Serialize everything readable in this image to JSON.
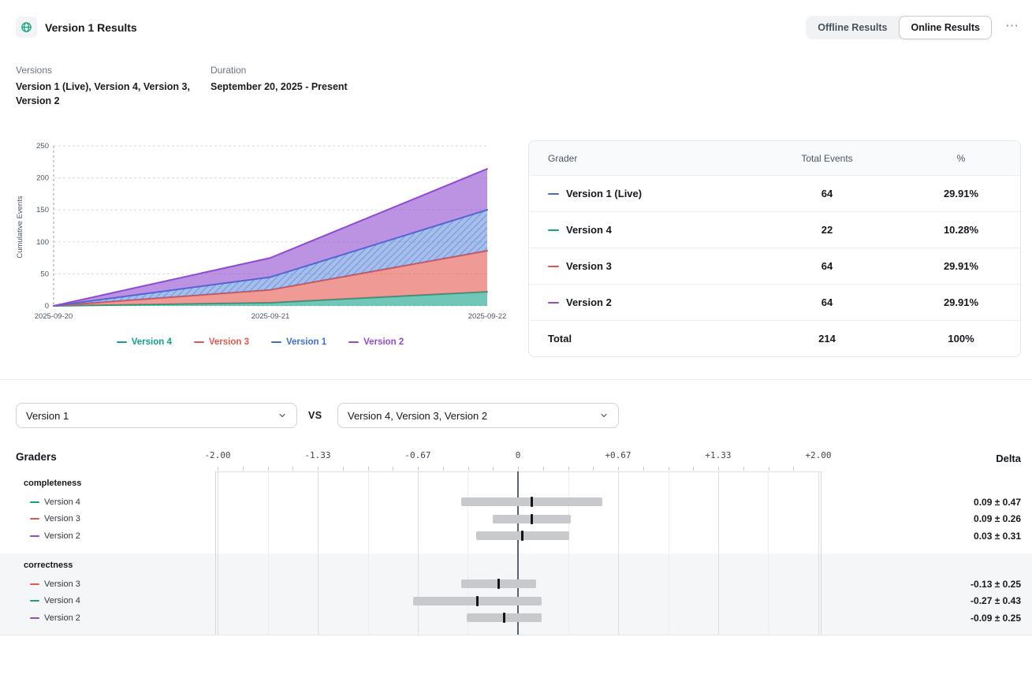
{
  "header": {
    "title": "Version 1 Results",
    "offline_label": "Offline Results",
    "online_label": "Online Results",
    "overflow_menu": "⋯"
  },
  "meta": {
    "versions_label": "Versions",
    "versions_value": "Version 1 (Live), Version 4, Version 3, Version 2",
    "duration_label": "Duration",
    "duration_value": "September 20, 2025 - Present"
  },
  "colors": {
    "version1": "#3d6fd3",
    "version2": "#8f4bd1",
    "version3": "#e4574c",
    "version4": "#11a287",
    "accent_teal": "#10a37f",
    "error_bar": "#c7c9cc",
    "mean_marker": "#141518"
  },
  "chart_data": [
    {
      "type": "area",
      "title": "Cumulative events by version",
      "stacked": true,
      "x": [
        "2025-09-20",
        "2025-09-21",
        "2025-09-22"
      ],
      "series": [
        {
          "name": "Version 4",
          "color_key": "version4",
          "values": [
            0,
            5,
            22
          ]
        },
        {
          "name": "Version 3",
          "color_key": "version3",
          "values": [
            0,
            20,
            64
          ]
        },
        {
          "name": "Version 1",
          "color_key": "version1",
          "values": [
            0,
            20,
            64
          ],
          "hatched": true
        },
        {
          "name": "Version 2",
          "color_key": "version2",
          "values": [
            0,
            30,
            64
          ]
        }
      ],
      "ylabel": "Cumulative Events",
      "ylim": [
        0,
        250
      ],
      "yticks": [
        0,
        50,
        100,
        150,
        200,
        250
      ],
      "grid": "dashed-horizontal",
      "legend_position": "bottom"
    },
    {
      "type": "interval",
      "title": "Grader score delta vs baseline",
      "xlim": [
        -2,
        2
      ],
      "ticks": [
        {
          "label": "-2.00",
          "value": -2
        },
        {
          "label": "-1.33",
          "value": -1.3333
        },
        {
          "label": "-0.67",
          "value": -0.6667
        },
        {
          "label": "0",
          "value": 0
        },
        {
          "label": "+0.67",
          "value": 0.6667
        },
        {
          "label": "+1.33",
          "value": 1.3333
        },
        {
          "label": "+2.00",
          "value": 2
        }
      ],
      "groups": [
        {
          "name": "completeness",
          "rows": [
            {
              "label": "Version 4",
              "color_key": "version4",
              "mean": 0.09,
              "err": 0.47,
              "delta": "0.09 ± 0.47"
            },
            {
              "label": "Version 3",
              "color_key": "version3",
              "mean": 0.09,
              "err": 0.26,
              "delta": "0.09 ± 0.26"
            },
            {
              "label": "Version 2",
              "color_key": "version2",
              "mean": 0.03,
              "err": 0.31,
              "delta": "0.03 ± 0.31"
            }
          ]
        },
        {
          "name": "correctness",
          "rows": [
            {
              "label": "Version 3",
              "color_key": "version3",
              "mean": -0.13,
              "err": 0.25,
              "delta": "-0.13 ± 0.25"
            },
            {
              "label": "Version 4",
              "color_key": "version4",
              "mean": -0.27,
              "err": 0.43,
              "delta": "-0.27 ± 0.43"
            },
            {
              "label": "Version 2",
              "color_key": "version2",
              "mean": -0.09,
              "err": 0.25,
              "delta": "-0.09 ± 0.25"
            }
          ]
        }
      ]
    }
  ],
  "events_table": {
    "columns": [
      "Grader",
      "Total Events",
      "%"
    ],
    "rows": [
      {
        "name": "Version 1 (Live)",
        "color_key": "version1",
        "events": "64",
        "pct": "29.91%"
      },
      {
        "name": "Version 4",
        "color_key": "version4",
        "events": "22",
        "pct": "10.28%"
      },
      {
        "name": "Version 3",
        "color_key": "version3",
        "events": "64",
        "pct": "29.91%"
      },
      {
        "name": "Version 2",
        "color_key": "version2",
        "events": "64",
        "pct": "29.91%"
      }
    ],
    "total": {
      "name": "Total",
      "events": "214",
      "pct": "100%"
    }
  },
  "compare": {
    "left_select": "Version 1",
    "vs_label": "VS",
    "right_select": "Version 4, Version 3, Version 2",
    "graders_label": "Graders",
    "delta_label": "Delta"
  }
}
